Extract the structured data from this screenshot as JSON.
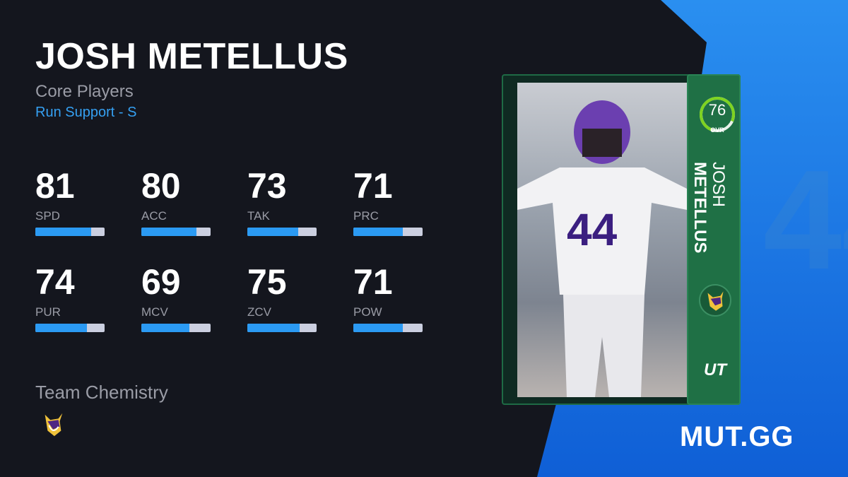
{
  "player": {
    "name": "JOSH METELLUS",
    "first_name": "JOSH",
    "last_name": "METELLUS",
    "program": "Core Players",
    "archetype": "Run Support - S"
  },
  "stats": [
    {
      "label": "SPD",
      "value": 81
    },
    {
      "label": "ACC",
      "value": 80
    },
    {
      "label": "TAK",
      "value": 73
    },
    {
      "label": "PRC",
      "value": 71
    },
    {
      "label": "PUR",
      "value": 74
    },
    {
      "label": "MCV",
      "value": 69
    },
    {
      "label": "ZCV",
      "value": 75
    },
    {
      "label": "POW",
      "value": 71
    }
  ],
  "card": {
    "ovr": "76",
    "ovr_label": "OVR",
    "mode": "UT",
    "team_logo": "vikings-logo-icon",
    "ring_color": "#7ed321",
    "panel_color": "#1f7045"
  },
  "chemistry": {
    "label": "Team Chemistry",
    "team_logo": "vikings-logo-icon"
  },
  "brand": "MUT.GG",
  "colors": {
    "accent": "#35a0f2",
    "bar_fill": "#2b9af3",
    "bar_track": "#cbcfe0",
    "background": "#14161e",
    "side_bg": "#1a7ae0"
  }
}
